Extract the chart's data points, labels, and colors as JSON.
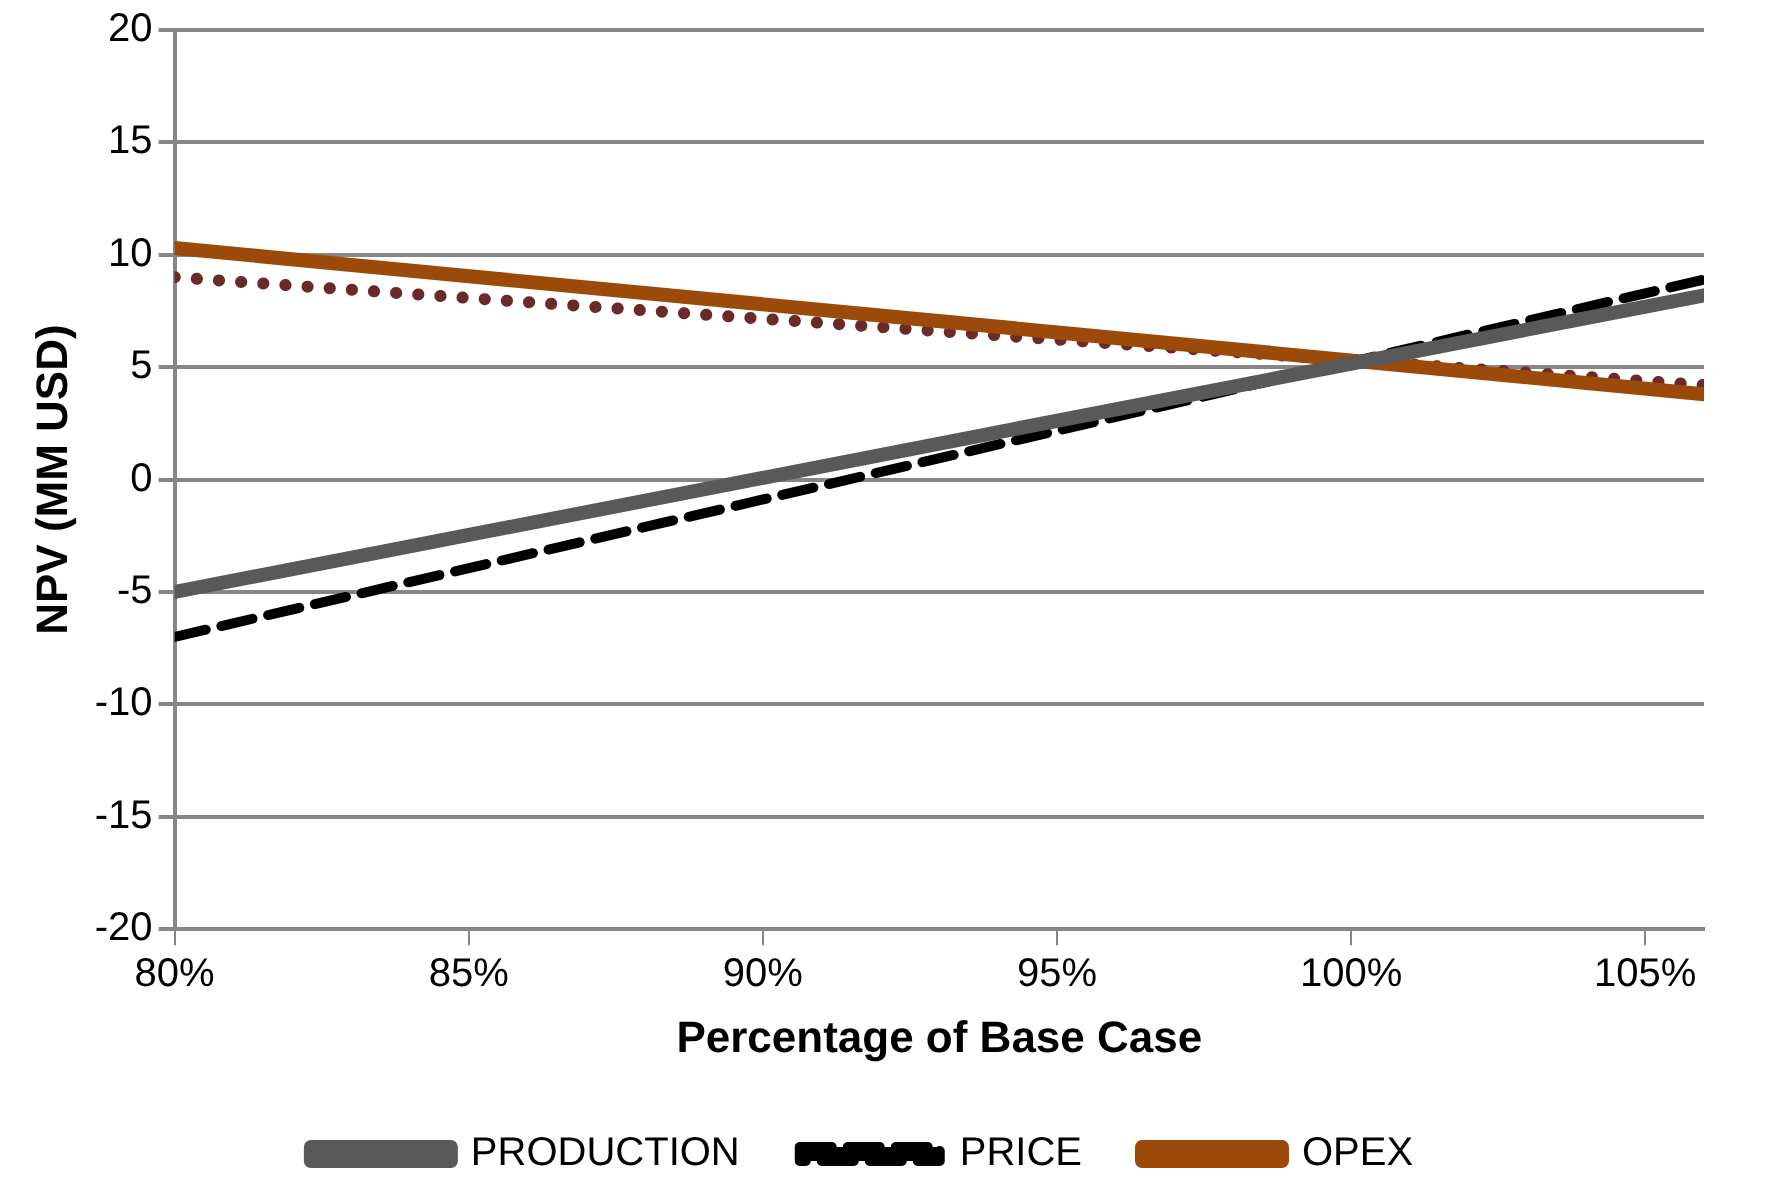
{
  "chart_data": {
    "type": "line",
    "xlabel": "Percentage of Base Case",
    "ylabel": "NPV (MM USD)",
    "x": [
      80,
      106
    ],
    "xlim": [
      80,
      106
    ],
    "xticks": [
      {
        "value": 80,
        "label": "80%"
      },
      {
        "value": 85,
        "label": "85%"
      },
      {
        "value": 90,
        "label": "90%"
      },
      {
        "value": 95,
        "label": "95%"
      },
      {
        "value": 100,
        "label": "100%"
      },
      {
        "value": 105,
        "label": "105%"
      }
    ],
    "ylim": [
      -20,
      20
    ],
    "yticks": [
      -20,
      -15,
      -10,
      -5,
      0,
      5,
      10,
      15,
      20
    ],
    "grid": "y",
    "legend": "bottom",
    "marker": "none",
    "series": [
      {
        "name": "PRODUCTION",
        "color": "#595959",
        "values": [
          -5,
          8.2
        ],
        "line_style": "solid"
      },
      {
        "name": "PRICE",
        "color": "#000000",
        "values": [
          -7,
          8.9
        ],
        "line_style": "dashed"
      },
      {
        "name": "OPEX",
        "color": "#9c4a0a",
        "values": [
          10.3,
          3.8
        ],
        "line_style": "solid"
      },
      {
        "color": "#6b2a2a",
        "values": [
          9,
          4.2
        ],
        "line_style": "dotted"
      }
    ]
  }
}
